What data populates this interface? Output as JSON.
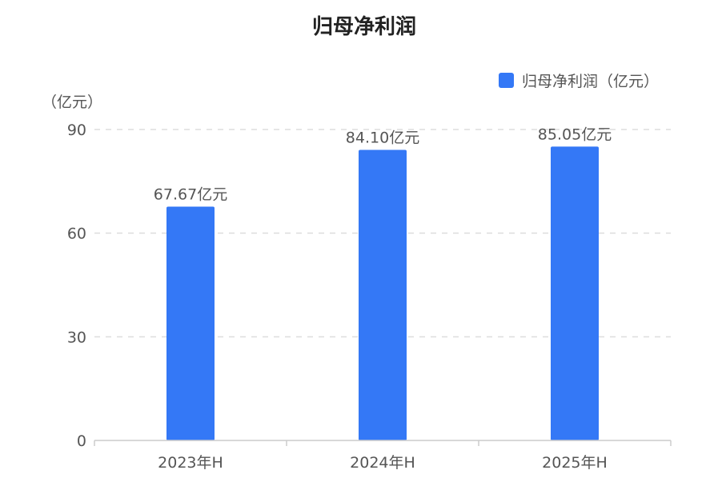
{
  "chart_data": {
    "type": "bar",
    "title": "归母净利润",
    "ylabel": "（亿元）",
    "categories": [
      "2023年H",
      "2024年H",
      "2025年H"
    ],
    "series": [
      {
        "name": "归母净利润（亿元）",
        "values": [
          67.67,
          84.1,
          85.05
        ],
        "data_labels": [
          "67.67亿元",
          "84.10亿元",
          "85.05亿元"
        ],
        "color": "#3478f6"
      }
    ],
    "ylim": [
      0,
      90
    ],
    "yticks": [
      "0",
      "30",
      "60",
      "90"
    ],
    "grid": true,
    "legend_position": "top-right"
  }
}
